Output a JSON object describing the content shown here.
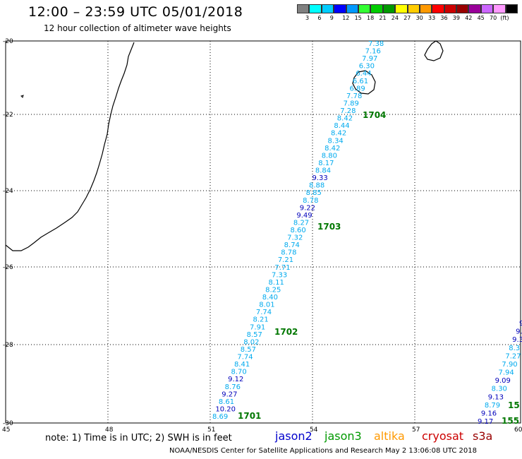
{
  "title": "12:00 – 23:59 UTC 05/01/2018",
  "subtitle": "12 hour collection of altimeter wave heights",
  "legend": {
    "colors": [
      "#808080",
      "#00ffff",
      "#00ccff",
      "#0000ff",
      "#0099ff",
      "#33ff33",
      "#00cc00",
      "#009900",
      "#ffff00",
      "#ffcc00",
      "#ff9900",
      "#ff0000",
      "#cc0000",
      "#990000",
      "#990099",
      "#cc66ff",
      "#ff99ff",
      "#000000"
    ],
    "labels": [
      "3",
      "6",
      "9",
      "12",
      "15",
      "18",
      "21",
      "24",
      "27",
      "30",
      "33",
      "36",
      "39",
      "42",
      "45",
      "70",
      "(ft)"
    ]
  },
  "axes": {
    "lon_ticks": [
      "45",
      "48",
      "51",
      "54",
      "57",
      "60"
    ],
    "lat_ticks": [
      "-20",
      "-22",
      "-24",
      "-26",
      "-28",
      "-30"
    ]
  },
  "track_main": {
    "values": [
      "7.38",
      "7.16",
      "7.97",
      "6.30",
      "6.44",
      "6.61",
      "6.89",
      "7.78",
      "7.89",
      "7.28",
      "8.42",
      "8.44",
      "8.42",
      "8.34",
      "8.42",
      "8.80",
      "8.17",
      "8.84",
      "9.33",
      "8.88",
      "8.85",
      "8.78",
      "9.22",
      "9.49",
      "8.27",
      "8.60",
      "7.32",
      "8.74",
      "8.78",
      "7.21",
      "7.71",
      "7.33",
      "8.11",
      "8.25",
      "8.40",
      "8.01",
      "7.74",
      "8.21",
      "7.91",
      "8.57",
      "8.02",
      "8.57",
      "7.74",
      "8.41",
      "8.70",
      "9.12",
      "8.76",
      "9.27",
      "8.61",
      "10.20",
      "8.69"
    ],
    "colors": [
      "#00aaee",
      "#00aaee",
      "#00aaee",
      "#00aaee",
      "#00aaee",
      "#00aaee",
      "#00aaee",
      "#00aaee",
      "#00aaee",
      "#00aaee",
      "#00aaee",
      "#00aaee",
      "#00aaee",
      "#00aaee",
      "#00aaee",
      "#00aaee",
      "#00aaee",
      "#00aaee",
      "#0000bb",
      "#00aaee",
      "#00aaee",
      "#00aaee",
      "#0000bb",
      "#0000bb",
      "#00aaee",
      "#00aaee",
      "#00aaee",
      "#00aaee",
      "#00aaee",
      "#00aaee",
      "#00aaee",
      "#00aaee",
      "#00aaee",
      "#00aaee",
      "#00aaee",
      "#00aaee",
      "#00aaee",
      "#00aaee",
      "#00aaee",
      "#00aaee",
      "#00aaee",
      "#00aaee",
      "#00aaee",
      "#00aaee",
      "#00aaee",
      "#0000bb",
      "#00aaee",
      "#0000bb",
      "#00aaee",
      "#0000bb",
      "#00aaee"
    ]
  },
  "track_right": {
    "values": [
      "9",
      "9.",
      "9.3",
      "8.3",
      "7.27",
      "7.90",
      "7.94",
      "9.09",
      "8.30",
      "9.13",
      "8.79",
      "9.16",
      "9.17"
    ],
    "colors": [
      "#0000bb",
      "#0000bb",
      "#0000bb",
      "#00aaee",
      "#00aaee",
      "#00aaee",
      "#00aaee",
      "#0000bb",
      "#00aaee",
      "#0000bb",
      "#00aaee",
      "#0000bb",
      "#0000bb"
    ]
  },
  "time_labels": [
    {
      "text": "1704"
    },
    {
      "text": "1703"
    },
    {
      "text": "1702"
    },
    {
      "text": "1701"
    },
    {
      "text": "15"
    },
    {
      "text": "155"
    }
  ],
  "note": "note:  1) Time is in UTC;  2) SWH is in feet",
  "satellites": [
    {
      "name": "jason2",
      "color": "#0000cc"
    },
    {
      "name": "jason3",
      "color": "#009900"
    },
    {
      "name": "altika",
      "color": "#ff9900"
    },
    {
      "name": "cryosat",
      "color": "#cc0000"
    },
    {
      "name": "s3a",
      "color": "#990000"
    }
  ],
  "credit": "NOAA/NESDIS Center for Satellite Applications and Research    May  2 13:06:08 UTC 2018"
}
